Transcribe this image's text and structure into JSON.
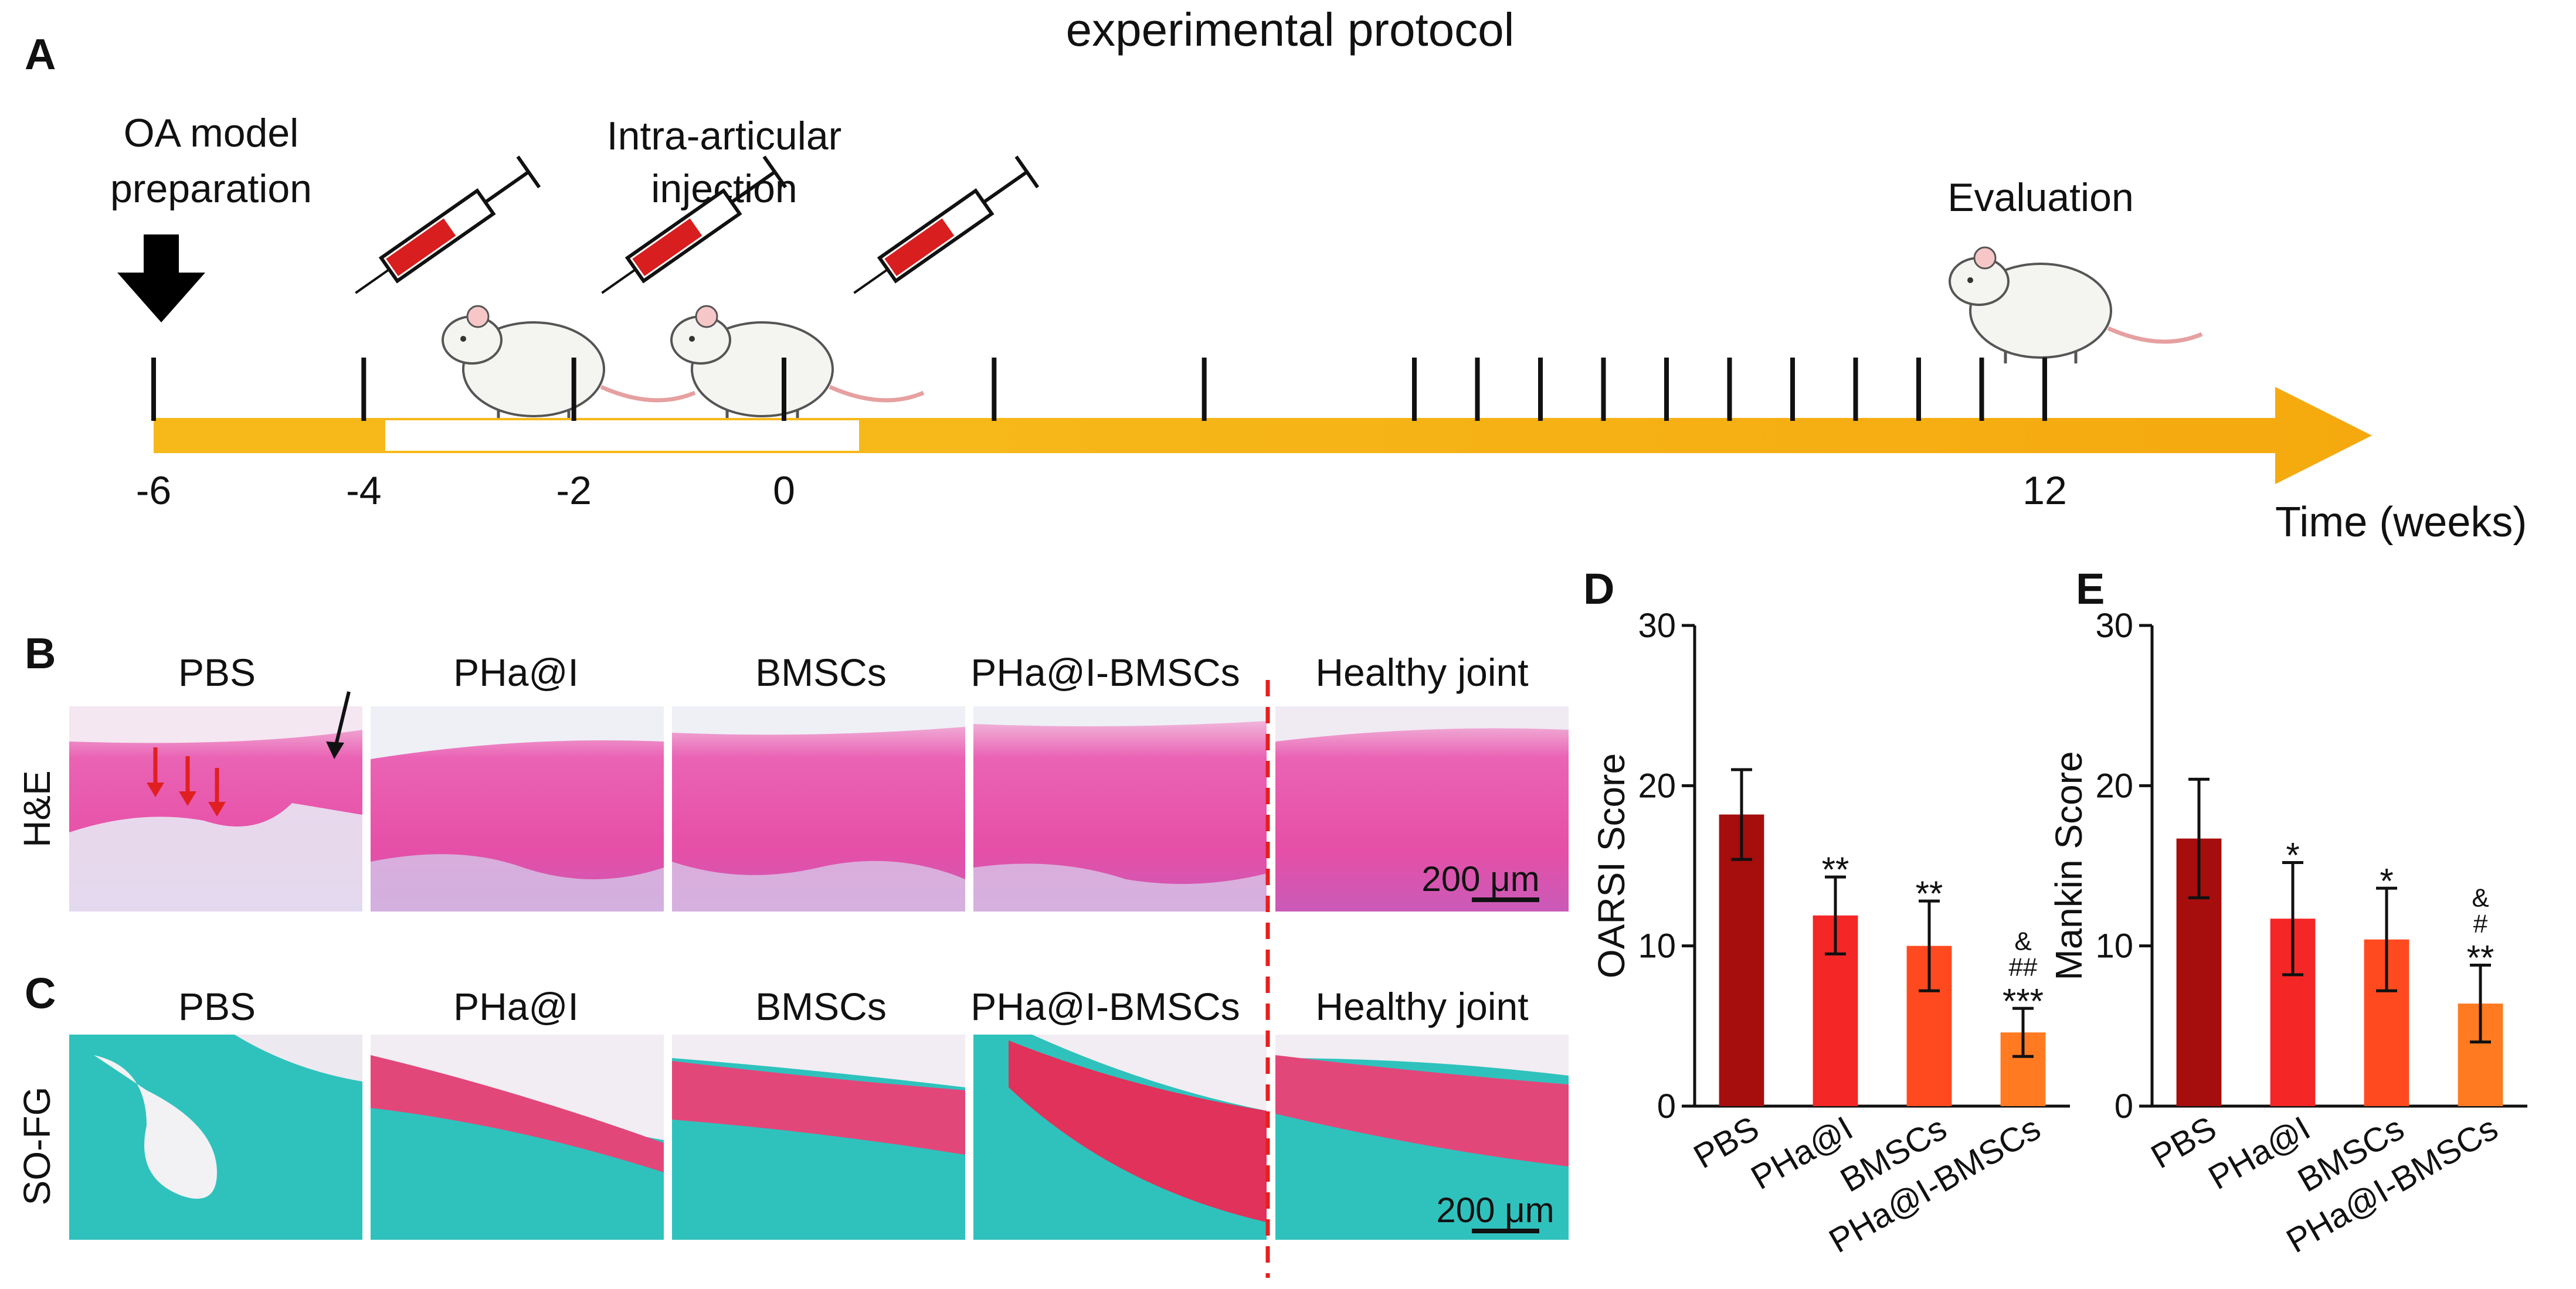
{
  "panel_labels": {
    "a": "A",
    "b": "B",
    "c": "C",
    "d": "D",
    "e": "E"
  },
  "protocol": {
    "title": "experimental protocol",
    "step_model_line1": "OA model",
    "step_model_line2": "preparation",
    "step_injection_line1": "Intra-articular",
    "step_injection_line2": "injection",
    "step_evaluation": "Evaluation",
    "time_ticks": [
      "-6",
      "-4",
      "-2",
      "0",
      "12"
    ],
    "time_values": [
      -6,
      -4,
      -2,
      0,
      12
    ],
    "time_axis_label": "Time (weeks)",
    "bar_color": "#F7B91A"
  },
  "micrographs": {
    "groups": [
      "PBS",
      "PHa@I",
      "BMSCs",
      "PHa@I-BMSCs",
      "Healthy joint"
    ],
    "row_b_label": "H&E",
    "row_c_label": "SO-FG",
    "scale_bar_text": "200 μm",
    "he_color": "#E85AAE",
    "sofg_cyan": "#2FC2BD",
    "sofg_red": "#E23A5E"
  },
  "chart_data": [
    {
      "type": "bar",
      "panel": "D",
      "title": "",
      "ylabel": "OARSI Score",
      "xlabel": "",
      "ylim": [
        0,
        30
      ],
      "yticks": [
        "0",
        "10",
        "20",
        "30"
      ],
      "ytick_values": [
        0,
        10,
        20,
        30
      ],
      "categories": [
        "PBS",
        "PHa@I",
        "BMSCs",
        "PHa@I-BMSCs"
      ],
      "values": [
        18.2,
        11.9,
        10.0,
        4.6
      ],
      "errors": [
        2.8,
        2.4,
        2.8,
        1.5
      ],
      "colors": [
        "#A60D0D",
        "#F42626",
        "#FF4A1F",
        "#FF7A21"
      ],
      "annotations": [
        [
          ""
        ],
        [
          "**"
        ],
        [
          "**"
        ],
        [
          "&",
          "##",
          "***"
        ]
      ]
    },
    {
      "type": "bar",
      "panel": "E",
      "title": "",
      "ylabel": "Mankin Score",
      "xlabel": "",
      "ylim": [
        0,
        30
      ],
      "yticks": [
        "0",
        "10",
        "20",
        "30"
      ],
      "ytick_values": [
        0,
        10,
        20,
        30
      ],
      "categories": [
        "PBS",
        "PHa@I",
        "BMSCs",
        "PHa@I-BMSCs"
      ],
      "values": [
        16.7,
        11.7,
        10.4,
        6.4
      ],
      "errors": [
        3.7,
        3.5,
        3.2,
        2.4
      ],
      "colors": [
        "#A60D0D",
        "#F42626",
        "#FF4A1F",
        "#FF7A21"
      ],
      "annotations": [
        [
          ""
        ],
        [
          "*"
        ],
        [
          "*"
        ],
        [
          "&",
          "#",
          "**"
        ]
      ]
    }
  ]
}
